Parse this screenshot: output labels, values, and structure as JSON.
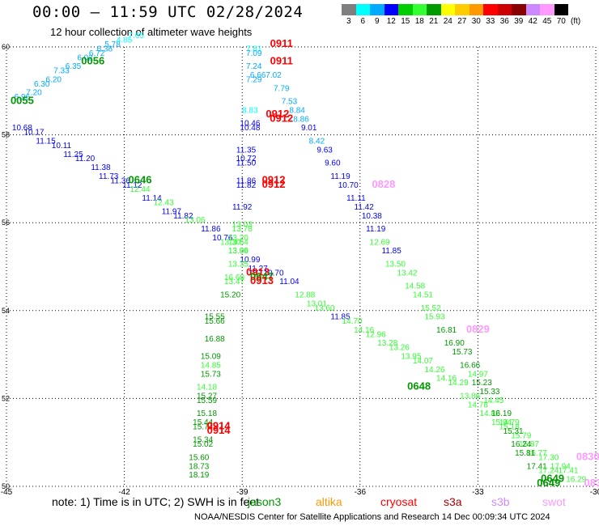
{
  "header": {
    "title": "00:00 – 11:59 UTC 02/28/2024",
    "subtitle": "12 hour collection of altimeter wave heights"
  },
  "colorbar": {
    "colors": [
      "#7f7f7f",
      "#00ffff",
      "#00aaff",
      "#0000ff",
      "#00cc00",
      "#33ff33",
      "#009900",
      "#ffff00",
      "#ffcc00",
      "#ff9900",
      "#ff0000",
      "#cc0000",
      "#880000",
      "#cc88ff",
      "#ff99ff",
      "#000000"
    ],
    "labels": [
      "3",
      "6",
      "9",
      "12",
      "15",
      "18",
      "21",
      "24",
      "27",
      "30",
      "33",
      "36",
      "39",
      "42",
      "45",
      "70"
    ],
    "unit": "(ft)"
  },
  "footer": {
    "note": "note: 1) Time is in UTC; 2) SWH is in feet",
    "credit": "NOAA/NESDIS Center for Satellite Applications and Research  14 Dec 00:09:34 UTC 2024",
    "satellites": [
      {
        "name": "jason3",
        "color": "#009900"
      },
      {
        "name": "altika",
        "color": "#ff9900"
      },
      {
        "name": "cryosat",
        "color": "#ff0000"
      },
      {
        "name": "s3a",
        "color": "#aa0000"
      },
      {
        "name": "s3b",
        "color": "#cc88ff"
      },
      {
        "name": "swot",
        "color": "#ff99ff"
      }
    ]
  },
  "chart_data": {
    "type": "scatter",
    "title": "00:00 – 11:59 UTC 02/28/2024",
    "xlim": [
      -45,
      -30
    ],
    "ylim": [
      50,
      60
    ],
    "x_ticks": [
      "-45",
      "-42",
      "-39",
      "-36",
      "-33",
      "-30"
    ],
    "y_ticks": [
      "50",
      "52",
      "54",
      "56",
      "58",
      "60"
    ],
    "grid": true,
    "points": [
      {
        "x": -44.6,
        "y": 58.8,
        "label": "6.96",
        "color": "#00aaff"
      },
      {
        "x": -44.3,
        "y": 58.9,
        "label": "7.20",
        "color": "#00aaff"
      },
      {
        "x": -44.1,
        "y": 59.1,
        "label": "6.30",
        "color": "#00aaff"
      },
      {
        "x": -43.8,
        "y": 59.2,
        "label": "6.20",
        "color": "#00aaff"
      },
      {
        "x": -43.6,
        "y": 59.4,
        "label": "7.33",
        "color": "#00aaff"
      },
      {
        "x": -43.3,
        "y": 59.5,
        "label": "6.35",
        "color": "#00aaff"
      },
      {
        "x": -43.0,
        "y": 59.7,
        "label": "6.02",
        "color": "#00aaff"
      },
      {
        "x": -42.7,
        "y": 59.8,
        "label": "6.72",
        "color": "#00aaff"
      },
      {
        "x": -42.5,
        "y": 59.9,
        "label": "6.38",
        "color": "#00aaff"
      },
      {
        "x": -42.3,
        "y": 60.0,
        "label": "5.78",
        "color": "#00aaff"
      },
      {
        "x": -42.0,
        "y": 60.1,
        "label": "4.85",
        "color": "#00ffff"
      },
      {
        "x": -41.7,
        "y": 60.2,
        "label": "7.65",
        "color": "#00ffff"
      },
      {
        "x": -44.6,
        "y": 58.1,
        "label": "10.68",
        "color": "#0000ff"
      },
      {
        "x": -44.3,
        "y": 58.0,
        "label": "10.17",
        "color": "#0000ff"
      },
      {
        "x": -44.0,
        "y": 57.8,
        "label": "11.15",
        "color": "#0000ff"
      },
      {
        "x": -43.6,
        "y": 57.7,
        "label": "10.11",
        "color": "#0000ff"
      },
      {
        "x": -43.3,
        "y": 57.5,
        "label": "11.25",
        "color": "#0000ff"
      },
      {
        "x": -43.0,
        "y": 57.4,
        "label": "11.20",
        "color": "#0000ff"
      },
      {
        "x": -42.6,
        "y": 57.2,
        "label": "11.38",
        "color": "#0000ff"
      },
      {
        "x": -42.4,
        "y": 57.0,
        "label": "11.73",
        "color": "#0000ff"
      },
      {
        "x": -42.1,
        "y": 56.9,
        "label": "11.36",
        "color": "#0000ff"
      },
      {
        "x": -41.8,
        "y": 56.8,
        "label": "11.12",
        "color": "#0000ff"
      },
      {
        "x": -41.6,
        "y": 56.7,
        "label": "12.44",
        "color": "#33ff33"
      },
      {
        "x": -41.3,
        "y": 56.5,
        "label": "11.14",
        "color": "#0000ff"
      },
      {
        "x": -41.0,
        "y": 56.4,
        "label": "12.43",
        "color": "#33ff33"
      },
      {
        "x": -40.8,
        "y": 56.2,
        "label": "11.97",
        "color": "#0000ff"
      },
      {
        "x": -40.5,
        "y": 56.1,
        "label": "11.82",
        "color": "#0000ff"
      },
      {
        "x": -40.2,
        "y": 56.0,
        "label": "13.06",
        "color": "#33ff33"
      },
      {
        "x": -39.8,
        "y": 55.8,
        "label": "11.86",
        "color": "#0000ff"
      },
      {
        "x": -39.5,
        "y": 55.6,
        "label": "10.76",
        "color": "#0000ff"
      },
      {
        "x": -39.3,
        "y": 55.5,
        "label": "13.30",
        "color": "#33ff33"
      },
      {
        "x": -39.1,
        "y": 55.3,
        "label": "13.06",
        "color": "#33ff33"
      },
      {
        "x": -38.8,
        "y": 55.1,
        "label": "10.99",
        "color": "#0000ff"
      },
      {
        "x": -38.6,
        "y": 54.9,
        "label": "11.27",
        "color": "#0000ff"
      },
      {
        "x": -38.2,
        "y": 54.8,
        "label": "10.70",
        "color": "#0000ff"
      },
      {
        "x": -37.8,
        "y": 54.6,
        "label": "11.04",
        "color": "#0000ff"
      },
      {
        "x": -37.4,
        "y": 54.3,
        "label": "12.88",
        "color": "#33ff33"
      },
      {
        "x": -37.1,
        "y": 54.1,
        "label": "13.01",
        "color": "#33ff33"
      },
      {
        "x": -36.9,
        "y": 54.0,
        "label": "13.60",
        "color": "#33ff33"
      },
      {
        "x": -36.5,
        "y": 53.8,
        "label": "11.85",
        "color": "#0000ff"
      },
      {
        "x": -36.2,
        "y": 53.7,
        "label": "14.70",
        "color": "#33ff33"
      },
      {
        "x": -35.9,
        "y": 53.5,
        "label": "14.16",
        "color": "#33ff33"
      },
      {
        "x": -35.6,
        "y": 53.4,
        "label": "12.96",
        "color": "#33ff33"
      },
      {
        "x": -35.3,
        "y": 53.2,
        "label": "13.28",
        "color": "#33ff33"
      },
      {
        "x": -35.0,
        "y": 53.1,
        "label": "13.26",
        "color": "#33ff33"
      },
      {
        "x": -34.7,
        "y": 52.9,
        "label": "13.95",
        "color": "#33ff33"
      },
      {
        "x": -34.4,
        "y": 52.8,
        "label": "14.07",
        "color": "#33ff33"
      },
      {
        "x": -34.1,
        "y": 52.6,
        "label": "14.26",
        "color": "#33ff33"
      },
      {
        "x": -33.8,
        "y": 52.4,
        "label": "14.16",
        "color": "#33ff33"
      },
      {
        "x": -33.5,
        "y": 52.3,
        "label": "14.29",
        "color": "#33ff33"
      },
      {
        "x": -33.2,
        "y": 52.0,
        "label": "13.86",
        "color": "#33ff33"
      },
      {
        "x": -33.0,
        "y": 51.8,
        "label": "14.78",
        "color": "#33ff33"
      },
      {
        "x": -32.7,
        "y": 51.6,
        "label": "14.82",
        "color": "#33ff33"
      },
      {
        "x": -32.4,
        "y": 51.4,
        "label": "15.94",
        "color": "#33ff33"
      },
      {
        "x": -32.2,
        "y": 51.3,
        "label": "15.18",
        "color": "#33ff33"
      },
      {
        "x": -31.9,
        "y": 51.1,
        "label": "15.79",
        "color": "#33ff33"
      },
      {
        "x": -31.7,
        "y": 50.9,
        "label": "15.87",
        "color": "#33ff33"
      },
      {
        "x": -31.5,
        "y": 50.7,
        "label": "16.77",
        "color": "#33ff33"
      },
      {
        "x": -31.2,
        "y": 50.6,
        "label": "17.30",
        "color": "#33ff33"
      },
      {
        "x": -30.9,
        "y": 50.4,
        "label": "17.94",
        "color": "#33ff33"
      },
      {
        "x": -30.7,
        "y": 50.3,
        "label": "17.41",
        "color": "#33ff33"
      },
      {
        "x": -30.5,
        "y": 50.1,
        "label": "16.29",
        "color": "#33ff33"
      },
      {
        "x": -38.7,
        "y": 59.9,
        "label": "7.81",
        "color": "#00ffff"
      },
      {
        "x": -38.7,
        "y": 59.8,
        "label": "7.09",
        "color": "#00aaff"
      },
      {
        "x": -38.7,
        "y": 59.5,
        "label": "7.24",
        "color": "#00aaff"
      },
      {
        "x": -38.6,
        "y": 59.3,
        "label": "6.66",
        "color": "#00aaff"
      },
      {
        "x": -38.7,
        "y": 59.2,
        "label": "7.29",
        "color": "#00aaff"
      },
      {
        "x": -38.2,
        "y": 59.3,
        "label": "7.02",
        "color": "#00aaff"
      },
      {
        "x": -38.0,
        "y": 59.0,
        "label": "7.79",
        "color": "#00aaff"
      },
      {
        "x": -37.8,
        "y": 58.7,
        "label": "7.53",
        "color": "#00aaff"
      },
      {
        "x": -38.8,
        "y": 58.5,
        "label": "8.83",
        "color": "#00ffff"
      },
      {
        "x": -37.6,
        "y": 58.5,
        "label": "8.84",
        "color": "#00aaff"
      },
      {
        "x": -37.5,
        "y": 58.3,
        "label": "8.86",
        "color": "#00aaff"
      },
      {
        "x": -38.8,
        "y": 58.2,
        "label": "10.46",
        "color": "#0000ff"
      },
      {
        "x": -38.8,
        "y": 58.1,
        "label": "10.48",
        "color": "#0000ff"
      },
      {
        "x": -37.3,
        "y": 58.1,
        "label": "9.01",
        "color": "#0000ff"
      },
      {
        "x": -37.1,
        "y": 57.8,
        "label": "8.42",
        "color": "#00aaff"
      },
      {
        "x": -38.9,
        "y": 57.6,
        "label": "11.35",
        "color": "#0000ff"
      },
      {
        "x": -38.9,
        "y": 57.4,
        "label": "10.72",
        "color": "#0000ff"
      },
      {
        "x": -38.9,
        "y": 57.3,
        "label": "11.50",
        "color": "#0000ff"
      },
      {
        "x": -36.9,
        "y": 57.6,
        "label": "9.63",
        "color": "#0000ff"
      },
      {
        "x": -36.7,
        "y": 57.3,
        "label": "9.60",
        "color": "#0000ff"
      },
      {
        "x": -36.5,
        "y": 57.0,
        "label": "11.19",
        "color": "#0000ff"
      },
      {
        "x": -36.3,
        "y": 56.8,
        "label": "10.70",
        "color": "#0000ff"
      },
      {
        "x": -38.9,
        "y": 56.9,
        "label": "11.86",
        "color": "#0000ff"
      },
      {
        "x": -38.9,
        "y": 56.8,
        "label": "11.82",
        "color": "#0000ff"
      },
      {
        "x": -39.0,
        "y": 56.3,
        "label": "11.92",
        "color": "#0000ff"
      },
      {
        "x": -36.1,
        "y": 56.5,
        "label": "11.11",
        "color": "#0000ff"
      },
      {
        "x": -35.9,
        "y": 56.3,
        "label": "11.42",
        "color": "#0000ff"
      },
      {
        "x": -35.7,
        "y": 56.1,
        "label": "10.38",
        "color": "#0000ff"
      },
      {
        "x": -35.6,
        "y": 55.8,
        "label": "11.19",
        "color": "#0000ff"
      },
      {
        "x": -39.0,
        "y": 55.9,
        "label": "13.03",
        "color": "#33ff33"
      },
      {
        "x": -39.0,
        "y": 55.8,
        "label": "13.78",
        "color": "#33ff33"
      },
      {
        "x": -39.1,
        "y": 55.6,
        "label": "13.20",
        "color": "#33ff33"
      },
      {
        "x": -39.1,
        "y": 55.5,
        "label": "13.54",
        "color": "#33ff33"
      },
      {
        "x": -39.1,
        "y": 55.3,
        "label": "13.39",
        "color": "#33ff33"
      },
      {
        "x": -39.1,
        "y": 55.0,
        "label": "13.35",
        "color": "#33ff33"
      },
      {
        "x": -35.5,
        "y": 55.5,
        "label": "12.69",
        "color": "#33ff33"
      },
      {
        "x": -35.2,
        "y": 55.3,
        "label": "11.85",
        "color": "#0000ff"
      },
      {
        "x": -35.1,
        "y": 55.0,
        "label": "13.50",
        "color": "#33ff33"
      },
      {
        "x": -34.8,
        "y": 54.8,
        "label": "13.42",
        "color": "#33ff33"
      },
      {
        "x": -34.6,
        "y": 54.5,
        "label": "14.58",
        "color": "#33ff33"
      },
      {
        "x": -34.4,
        "y": 54.3,
        "label": "14.51",
        "color": "#33ff33"
      },
      {
        "x": -34.2,
        "y": 54.0,
        "label": "15.52",
        "color": "#33ff33"
      },
      {
        "x": -34.1,
        "y": 53.8,
        "label": "15.93",
        "color": "#33ff33"
      },
      {
        "x": -33.8,
        "y": 53.5,
        "label": "16.81",
        "color": "#009900"
      },
      {
        "x": -39.2,
        "y": 54.7,
        "label": "16.69",
        "color": "#33ff33"
      },
      {
        "x": -39.2,
        "y": 54.6,
        "label": "13.47",
        "color": "#33ff33"
      },
      {
        "x": -39.3,
        "y": 54.3,
        "label": "15.20",
        "color": "#009900"
      },
      {
        "x": -33.6,
        "y": 53.2,
        "label": "16.90",
        "color": "#009900"
      },
      {
        "x": -33.4,
        "y": 53.0,
        "label": "15.73",
        "color": "#009900"
      },
      {
        "x": -33.2,
        "y": 52.7,
        "label": "16.66",
        "color": "#009900"
      },
      {
        "x": -33.0,
        "y": 52.5,
        "label": "14.97",
        "color": "#33ff33"
      },
      {
        "x": -32.9,
        "y": 52.3,
        "label": "15.23",
        "color": "#009900"
      },
      {
        "x": -32.7,
        "y": 52.1,
        "label": "15.33",
        "color": "#009900"
      },
      {
        "x": -32.6,
        "y": 51.9,
        "label": "14.45",
        "color": "#33ff33"
      },
      {
        "x": -32.4,
        "y": 51.6,
        "label": "16.19",
        "color": "#009900"
      },
      {
        "x": -32.2,
        "y": 51.4,
        "label": "14.79",
        "color": "#33ff33"
      },
      {
        "x": -32.1,
        "y": 51.2,
        "label": "15.31",
        "color": "#009900"
      },
      {
        "x": -31.9,
        "y": 50.9,
        "label": "16.24",
        "color": "#009900"
      },
      {
        "x": -31.8,
        "y": 50.7,
        "label": "15.81",
        "color": "#009900"
      },
      {
        "x": -31.5,
        "y": 50.4,
        "label": "17.41",
        "color": "#009900"
      },
      {
        "x": -31.2,
        "y": 50.3,
        "label": "17.24",
        "color": "#33ff33"
      },
      {
        "x": -39.7,
        "y": 53.8,
        "label": "15.55",
        "color": "#009900"
      },
      {
        "x": -39.7,
        "y": 53.7,
        "label": "15.66",
        "color": "#009900"
      },
      {
        "x": -39.7,
        "y": 53.3,
        "label": "16.88",
        "color": "#009900"
      },
      {
        "x": -39.8,
        "y": 52.9,
        "label": "15.09",
        "color": "#009900"
      },
      {
        "x": -39.8,
        "y": 52.7,
        "label": "14.85",
        "color": "#33ff33"
      },
      {
        "x": -39.8,
        "y": 52.5,
        "label": "15.73",
        "color": "#009900"
      },
      {
        "x": -39.9,
        "y": 52.2,
        "label": "14.18",
        "color": "#33ff33"
      },
      {
        "x": -39.9,
        "y": 52.0,
        "label": "15.27",
        "color": "#009900"
      },
      {
        "x": -39.9,
        "y": 51.9,
        "label": "15.59",
        "color": "#009900"
      },
      {
        "x": -39.9,
        "y": 51.6,
        "label": "15.18",
        "color": "#009900"
      },
      {
        "x": -40.0,
        "y": 51.4,
        "label": "15.44",
        "color": "#009900"
      },
      {
        "x": -40.0,
        "y": 51.3,
        "label": "15.74",
        "color": "#009900"
      },
      {
        "x": -40.0,
        "y": 51.0,
        "label": "15.34",
        "color": "#009900"
      },
      {
        "x": -40.0,
        "y": 50.9,
        "label": "15.02",
        "color": "#009900"
      },
      {
        "x": -40.1,
        "y": 50.6,
        "label": "15.60",
        "color": "#009900"
      },
      {
        "x": -40.1,
        "y": 50.4,
        "label": "18.73",
        "color": "#009900"
      },
      {
        "x": -40.1,
        "y": 50.2,
        "label": "18.19",
        "color": "#009900"
      }
    ],
    "time_labels": [
      {
        "x": -44.6,
        "y": 58.7,
        "label": "0055",
        "color": "#009900"
      },
      {
        "x": -42.8,
        "y": 59.6,
        "label": "0056",
        "color": "#009900"
      },
      {
        "x": -41.6,
        "y": 56.9,
        "label": "0646",
        "color": "#009900"
      },
      {
        "x": -38.0,
        "y": 60.0,
        "label": "0911",
        "color": "#ff0000"
      },
      {
        "x": -38.0,
        "y": 59.6,
        "label": "0911",
        "color": "#ff0000"
      },
      {
        "x": -38.1,
        "y": 58.4,
        "label": "0912",
        "color": "#ff0000"
      },
      {
        "x": -38.0,
        "y": 58.3,
        "label": "0912",
        "color": "#ff0000"
      },
      {
        "x": -38.2,
        "y": 56.9,
        "label": "0912",
        "color": "#ff0000"
      },
      {
        "x": -38.2,
        "y": 56.8,
        "label": "0912",
        "color": "#ff0000"
      },
      {
        "x": -35.4,
        "y": 56.8,
        "label": "0828",
        "color": "#ff99ff"
      },
      {
        "x": -38.6,
        "y": 54.8,
        "label": "0913",
        "color": "#ff0000"
      },
      {
        "x": -38.5,
        "y": 54.7,
        "label": "0647",
        "color": "#009900"
      },
      {
        "x": -38.5,
        "y": 54.6,
        "label": "0913",
        "color": "#ff0000"
      },
      {
        "x": -33.0,
        "y": 53.5,
        "label": "0829",
        "color": "#ff99ff"
      },
      {
        "x": -34.5,
        "y": 52.2,
        "label": "0648",
        "color": "#009900"
      },
      {
        "x": -39.6,
        "y": 51.3,
        "label": "0914",
        "color": "#ff0000"
      },
      {
        "x": -39.6,
        "y": 51.2,
        "label": "0914",
        "color": "#ff0000"
      },
      {
        "x": -30.2,
        "y": 50.6,
        "label": "0830",
        "color": "#ff99ff"
      },
      {
        "x": -31.1,
        "y": 50.1,
        "label": "0649",
        "color": "#009900"
      },
      {
        "x": -31.2,
        "y": 50.0,
        "label": "0649",
        "color": "#009900"
      },
      {
        "x": -30.0,
        "y": 50.0,
        "label": "0831",
        "color": "#ff99ff"
      }
    ]
  }
}
